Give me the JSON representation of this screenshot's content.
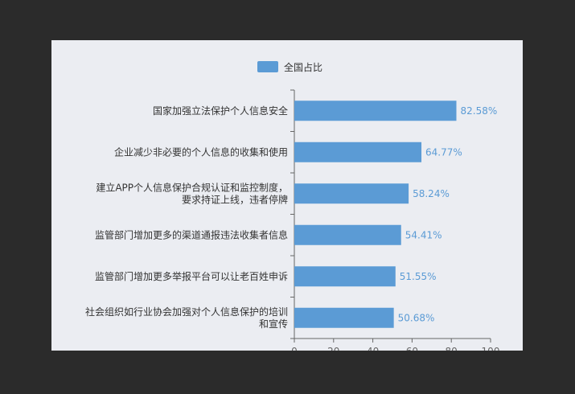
{
  "colors": {
    "bar": "#5b9bd5",
    "value_label": "#5b9bd5",
    "axis": "#666666",
    "frame_bg": "#ebedf2"
  },
  "chart_data": {
    "type": "bar",
    "orientation": "horizontal",
    "categories": [
      "国家加强立法保护个人信息安全",
      "企业减少非必要的个人信息的收集和使用",
      "建立APP个人信息保护合规认证和监控制度，要求持证上线，违者停牌",
      "监管部门增加更多的渠道通报违法收集者信息",
      "监管部门增加更多举报平台可以让老百姓申诉",
      "社会组织如行业协会加强对个人信息保护的培训和宣传"
    ],
    "category_lines": [
      [
        "国家加强立法保护个人信息安全"
      ],
      [
        "企业减少非必要的个人信息的收集和使用"
      ],
      [
        "建立APP个人信息保护合规认证和监控制度，",
        "要求持证上线，违者停牌"
      ],
      [
        "监管部门增加更多的渠道通报违法收集者信息"
      ],
      [
        "监管部门增加更多举报平台可以让老百姓申诉"
      ],
      [
        "社会组织如行业协会加强对个人信息保护的培训",
        "和宣传"
      ]
    ],
    "series": [
      {
        "name": "全国占比",
        "values": [
          82.58,
          64.77,
          58.24,
          54.41,
          51.55,
          50.68
        ],
        "labels": [
          "82.58%",
          "64.77%",
          "58.24%",
          "54.41%",
          "51.55%",
          "50.68%"
        ]
      }
    ],
    "xlim": [
      0,
      100
    ],
    "xticks": [
      0,
      20,
      40,
      60,
      80,
      100
    ],
    "grid": false,
    "legend_position": "top"
  }
}
